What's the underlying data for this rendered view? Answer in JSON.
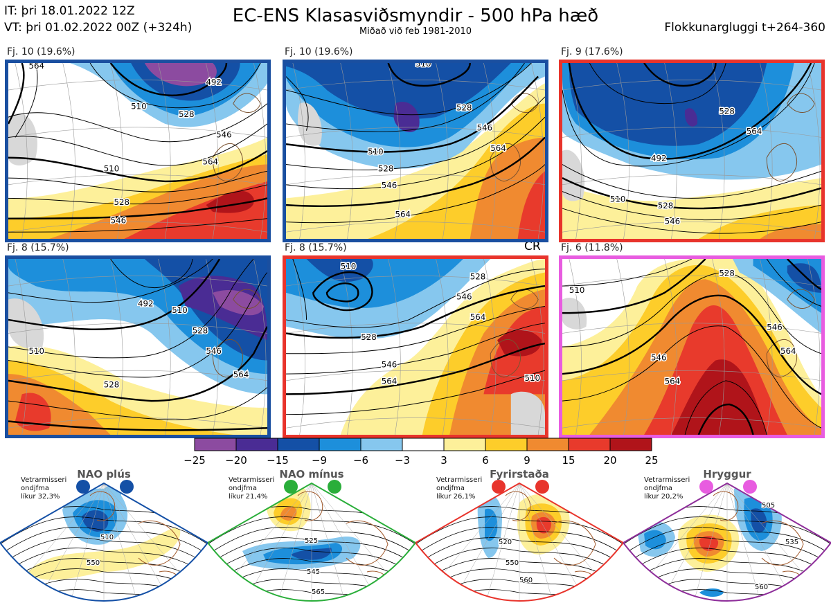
{
  "header": {
    "it": "IT: þri 18.01.2022 12Z",
    "vt": "VT: þri 01.02.2022 00Z  (+324h)",
    "title": "EC-ENS Klasasviðsmyndir - 500 hPa hæð",
    "subtitle": "Miðað við feb 1981-2010",
    "window": "Flokkunargluggi t+264-360"
  },
  "panels": [
    {
      "label": "Fj. 10 (19.6%)",
      "border_color": "#1a4fa0",
      "contours": [
        "492",
        "510",
        "528",
        "546",
        "564",
        "510",
        "528",
        "546",
        "564"
      ]
    },
    {
      "label": "Fj. 10 (19.6%)",
      "border_color": "#1a4fa0",
      "contours": [
        "510",
        "528",
        "546",
        "564",
        "510",
        "528",
        "546",
        "564"
      ]
    },
    {
      "label": "Fj. 9 (17.6%)",
      "border_color": "#e8342c",
      "contours": [
        "492",
        "510",
        "528",
        "546",
        "564",
        "528"
      ]
    },
    {
      "label": "Fj. 8 (15.7%)",
      "border_color": "#1a4fa0",
      "contours": [
        "492",
        "510",
        "528",
        "546",
        "564",
        "510",
        "528"
      ]
    },
    {
      "label": "Fj. 8 (15.7%)",
      "border_color": "#e8342c",
      "contours": [
        "510",
        "528",
        "546",
        "564",
        "510",
        "528",
        "546",
        "564"
      ]
    },
    {
      "label": "Fj. 6 (11.8%)",
      "border_color": "#e85ce0",
      "contours": [
        "510",
        "528",
        "546",
        "564",
        "546",
        "564"
      ]
    }
  ],
  "cr_label": "CR",
  "colorbar": {
    "colors": [
      "#8c4ba0",
      "#4a2c94",
      "#1450a6",
      "#1d8fdb",
      "#86c7ee",
      "#ffffff",
      "#fdf09a",
      "#fdcd2a",
      "#f08a30",
      "#e83a2c",
      "#b0141a"
    ],
    "ticks": [
      "−25",
      "−20",
      "−15",
      "−9",
      "−6",
      "−3",
      "3",
      "6",
      "9",
      "15",
      "20",
      "25"
    ]
  },
  "regimes": [
    {
      "title": "NAO plús",
      "note": [
        "Vetrarmisseri",
        "ondjfma",
        "líkur 32,3%"
      ],
      "dot_color": "#1450a6",
      "outline_color": "#1450a6",
      "contours": [
        "510",
        "550"
      ]
    },
    {
      "title": "NAO mínus",
      "note": [
        "Vetrarmisseri",
        "ondjfma",
        "líkur 21,4%"
      ],
      "dot_color": "#2aae3a",
      "outline_color": "#2aae3a",
      "contours": [
        "525",
        "545",
        "565"
      ]
    },
    {
      "title": "Fyrirstaða",
      "note": [
        "Vetrarmisseri",
        "ondjfma",
        "líkur 26,1%"
      ],
      "dot_color": "#e8342c",
      "outline_color": "#e8342c",
      "contours": [
        "520",
        "550",
        "560"
      ]
    },
    {
      "title": "Hryggur",
      "note": [
        "Vetrarmisseri",
        "ondjfma",
        "líkur 20,2%"
      ],
      "dot_color": "#e85ce0",
      "outline_color": "#8e2e9a",
      "contours": [
        "505",
        "535",
        "560"
      ]
    }
  ]
}
